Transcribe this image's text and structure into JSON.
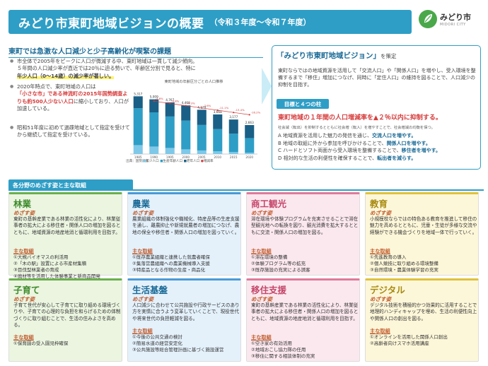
{
  "title": {
    "main": "みどり市東町地域ビジョンの概要",
    "period": "（令和３年度～令和７年度）"
  },
  "logo": {
    "name": "みどり市",
    "en": "MIDORI CITY"
  },
  "issue": {
    "heading": "東町では急激な人口減少と少子高齢化が喫緊の課題",
    "b1a": "市全体で2005年をピークに人口が微減する中、東町地域は一貫して減少傾向。",
    "b1b": "５年間の人口減少率が直近では20％に迫る勢いで、年齢区分別で見ると、特に",
    "b1c": "年少人口（0～14歳）の減少率が著しい。",
    "b2a": "2020年時点で、東町地域の人口は",
    "b2b": "「小さな市」である神流町の2015年国勢調査よりも約500人少ない人口",
    "b2c": "に縮小しており、人口が加速している。",
    "b3a": "昭和51年度に初めて過疎地域として指定を受けてから継続して指定を",
    "b3b": "受けている。"
  },
  "chart_data": {
    "type": "bar",
    "title": "東町地域の年齢区分ごとの人口推移",
    "source": "出典：国勢調査",
    "legend": [
      "年少人口",
      "生産年齢人口",
      "老年人口",
      "増減率"
    ],
    "categories": [
      "1985",
      "1990",
      "1995",
      "2000",
      "2005",
      "2010",
      "2015",
      "2020"
    ],
    "series": [
      {
        "name": "年少人口",
        "values": [
          820,
          690,
          560,
          430,
          330,
          250,
          180,
          120
        ]
      },
      {
        "name": "生産年齢人口",
        "values": [
          3400,
          3150,
          2900,
          2650,
          2350,
          2050,
          1700,
          1350
        ]
      },
      {
        "name": "老年人口",
        "values": [
          1100,
          1200,
          1300,
          1400,
          1400,
          1350,
          1300,
          1200
        ]
      }
    ],
    "totals": [
      "5,317",
      "5,009",
      "4,767",
      "4,468",
      "4,128",
      "3,668",
      "3,177",
      "2,663"
    ],
    "rates": [
      "",
      "-5.8%",
      "-4.8%",
      "-6.3%",
      "-7.6%",
      "-11.1%",
      "-13.4%",
      "-16.2%"
    ],
    "colors": {
      "young": "#7fc8e8",
      "working": "#2e9ec6",
      "old": "#1a5f86",
      "rate": "#d63b3b"
    }
  },
  "vision": {
    "t_q_open": "「",
    "t_main": "みどり市東町地域ビジョン",
    "t_q_close": "」",
    "t_small": "を策定",
    "text": "東町ならではの地域資源を活用して「交流人口」や「関係人口」を増やし、受入環境を整備するまで「移住」増加につなげ、同時に「定住人口」の維持を図ることで、人口減少の抑制を目指す。",
    "pillar_tag": "目標と４つの柱",
    "goal": "東町地域の１年間の人口増減率を▲２％以内に抑制する。",
    "goal_note": "社会減（転出）を抑制するとともに社会増（転入）を増やすことで、社会増減の均衡を保つ。",
    "pillars": [
      {
        "key": "A",
        "text": "地域資源を活用した魅力の発信を通じ、",
        "em": "交流人口を増やす。"
      },
      {
        "key": "B",
        "text": "地域の取組に外から参加を呼びかけることで、",
        "em": "関係人口を増やす。"
      },
      {
        "key": "C",
        "text": "ハードとソフト両面から受入環境を整備することで、",
        "em": "移住者を増やす。"
      },
      {
        "key": "D",
        "text": "相対的な生活の利便性を確保することで、",
        "em": "転出者を減らす。"
      }
    ]
  },
  "section_tag": "各分野のめざす姿と主な取組",
  "cards": [
    {
      "head": "林業",
      "sub": "めざす姿",
      "desc": "東町の基幹産業である林業の活性化により、林業従事者の拡大による移住者・関係人口の増加を図るとともに、地域資源の地産地消と循環利用を目指す。",
      "lbl": "主な取組",
      "items": [
        "①大規バイオマスの利活用",
        "②「木の駅」設置による市産材集積",
        "③目伐型林業者の育成",
        "④廃材等を活用した体験事業と新商品開発"
      ]
    },
    {
      "head": "農業",
      "sub": "めざす姿",
      "desc": "農業組織の体制強化や機械化、特産品等の生産支援を通し、離農抑止や新規就農者の増加につなげ、農地の保全や移住者・関係人口の増加を図っていく。",
      "lbl": "主な取組",
      "items": [
        "①既存農業組織と連携した就農者確保",
        "②集落営農組織への農業機械導入支援",
        "③特産品となる作物の生産・商品化"
      ]
    },
    {
      "head": "商工観光",
      "sub": "めざす姿",
      "desc": "滞在環境や体験プログラムを充実させることで滞在型観光地への転換を図り、観光消費を拡大するとともに交流・関係人口の増加を図る。",
      "lbl": "主な取組",
      "items": [
        "①滞在環境の整備",
        "②体験プログラム等の拡充",
        "③既存施設の充実による誘客"
      ]
    },
    {
      "head": "教育",
      "sub": "めざす姿",
      "desc": "小規模校ならではの特色ある教育を推進して移住の魅力を高めるとともに、児童・生徒が多様な交流や経験ができる機会づくりを地域一体で行っていく。",
      "lbl": "主な取組",
      "items": [
        "①先進教育の導入",
        "②個人競技に取り組める環境整備",
        "③自然環境・農業体験学習の充実"
      ]
    },
    {
      "head": "子育て",
      "sub": "めざす姿",
      "desc": "子育て世代が安心して子育てに取り組める環境づくりや、子育ての心理的な負担を和らげるための体制づくりに取り組むことで、生活の住みよさを高める。",
      "lbl": "主な取組",
      "items": [
        "①保育園の受入園児枠確保"
      ]
    },
    {
      "head": "生活基盤",
      "sub": "めざす姿",
      "desc": "人口減少に合わせて公共施設や行政サービスのあり方を実情に合うよう変革していくことで、現役世代や将来世代の負担軽減を図る。",
      "lbl": "主な取組",
      "items": [
        "①今後の公共交通の検討",
        "②簡易水道の経営安定化",
        "③公共施設等総合管理計画に基づく施設運営"
      ]
    },
    {
      "head": "移住支援",
      "sub": "めざす姿",
      "desc": "東町の基幹産業である林業の活性化により、林業従事者の拡大による移住者・関係人口の増加を図るとともに、地域資源の地産地消と循環利用を目指す。",
      "lbl": "主な取組",
      "items": [
        "①空き家の有効活用",
        "②地域おこし協力隊の任用",
        "③移住に関する相談体制の充実"
      ]
    },
    {
      "head": "デジタル",
      "sub": "めざす姿",
      "desc": "デジタル技術を積極的かつ効果的に活用することで地理的ハンディキャップを埋め、生活の利便性向上や関係人口の創出を図る。",
      "lbl": "主な取組",
      "items": [
        "①オンラインを活用した関係人口創出",
        "②高齢者向けスマホ活用講座"
      ]
    }
  ]
}
